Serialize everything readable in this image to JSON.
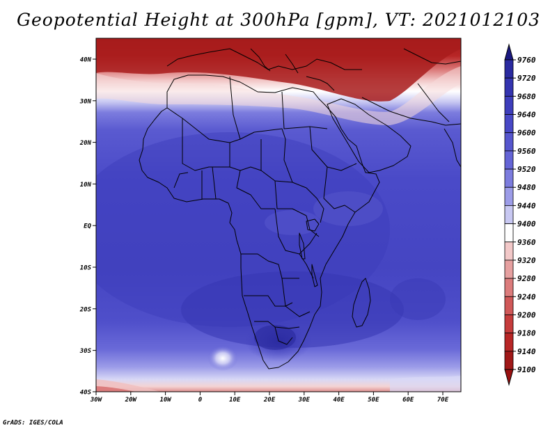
{
  "title": "Geopotential Height at 300hPa [gpm], VT: 2021012103",
  "credit": "GrADS: IGES/COLA",
  "lat_labels": [
    "40N",
    "30N",
    "20N",
    "10N",
    "EQ",
    "10S",
    "20S",
    "30S",
    "40S"
  ],
  "lon_labels": [
    "30W",
    "20W",
    "10W",
    "0",
    "10E",
    "20E",
    "30E",
    "40E",
    "50E",
    "60E",
    "70E"
  ],
  "colorbar": {
    "labels": [
      9760,
      9720,
      9680,
      9640,
      9600,
      9560,
      9520,
      9480,
      9440,
      9400,
      9360,
      9320,
      9280,
      9240,
      9200,
      9180,
      9140,
      9100
    ],
    "colors": [
      "#1c1a8c",
      "#2a2aa0",
      "#3434b0",
      "#3e3ebc",
      "#4848c6",
      "#5656ce",
      "#6464d6",
      "#7c7cde",
      "#9c9ce8",
      "#c8c8f2",
      "#ffffff",
      "#f2c8c8",
      "#e6a0a0",
      "#dc7c7c",
      "#d05858",
      "#c63c3c",
      "#b82626",
      "#a01818"
    ],
    "high_arrow_color": "#1a1880",
    "low_arrow_color": "#9a1010"
  }
}
